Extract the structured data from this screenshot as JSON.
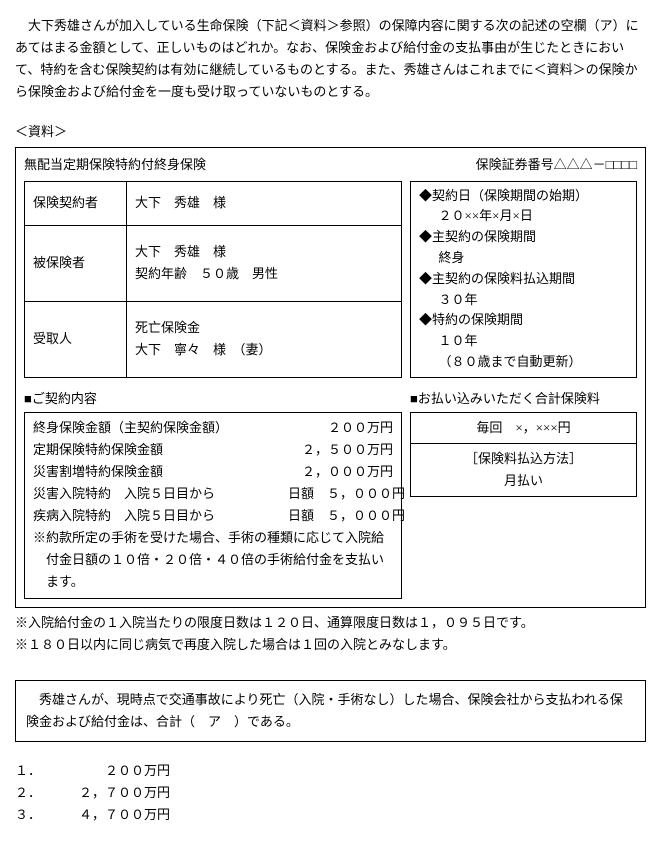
{
  "intro": "大下秀雄さんが加入している生命保険（下記＜資料＞参照）の保障内容に関する次の記述の空欄（ア）にあてはまる金額として、正しいものはどれか。なお、保険金および給付金の支払事由が生じたときにおいて、特約を含む保険契約は有効に継続しているものとする。また、秀雄さんはこれまでに＜資料＞の保険から保険金および給付金を一度も受け取っていないものとする。",
  "shiryoLabel": "＜資料＞",
  "header": {
    "productName": "無配当定期保険特約付終身保険",
    "policyNumber": "保険証券番号△△△－□□□□"
  },
  "parties": {
    "contractorLabel": "保険契約者",
    "contractorValue": "大下　秀雄　様",
    "insuredLabel": "被保険者",
    "insuredLine1": "大下　秀雄　様",
    "insuredLine2": "契約年齢　５０歳　男性",
    "beneficiaryLabel": "受取人",
    "beneficiaryLine1": "死亡保険金",
    "beneficiaryLine2": "大下　寧々　様　（妻）"
  },
  "terms": {
    "kLine1": "◆契約日（保険期間の始期）",
    "kLine1v": "２０××年×月×日",
    "kLine2": "◆主契約の保険期間",
    "kLine2v": "終身",
    "kLine3": "◆主契約の保険料払込期間",
    "kLine3v": "３０年",
    "kLine4": "◆特約の保険期間",
    "kLine4v": "１０年",
    "kLine4v2": "（８０歳まで自動更新）"
  },
  "contractTitle": "■ご契約内容",
  "contract": [
    {
      "label": "終身保険金額（主契約保険金額）",
      "value": "２００万円"
    },
    {
      "label": "定期保険特約保険金額",
      "value": "２，５００万円"
    },
    {
      "label": "災害割増特約保険金額",
      "value": "２，０００万円"
    },
    {
      "label": "災害入院特約　入院５日目から",
      "value": "日額　５，０００円"
    },
    {
      "label": "疾病入院特約　入院５日目から",
      "value": "日額　５，０００円"
    }
  ],
  "surgeryNote": "※約款所定の手術を受けた場合、手術の種類に応じて入院給付金日額の１０倍・２０倍・４０倍の手術給付金を支払います。",
  "paymentTitle": "■お払い込みいただく合計保険料",
  "paymentAmount": "毎回　×，×××円",
  "paymentMethodLabel": "［保険料払込方法］",
  "paymentMethod": "月払い",
  "note1": "※入院給付金の１入院当たりの限度日数は１２０日、通算限度日数は１，０９５日です。",
  "note2": "※１８０日以内に同じ病気で再度入院した場合は１回の入院とみなします。",
  "question": "秀雄さんが、現時点で交通事故により死亡（入院・手術なし）した場合、保険会社から支払われる保険金および給付金は、合計（　ア　）である。",
  "choices": [
    {
      "num": "１．",
      "val": "２００万円"
    },
    {
      "num": "２．",
      "val": "２，７００万円"
    },
    {
      "num": "３．",
      "val": "４，７００万円"
    }
  ]
}
